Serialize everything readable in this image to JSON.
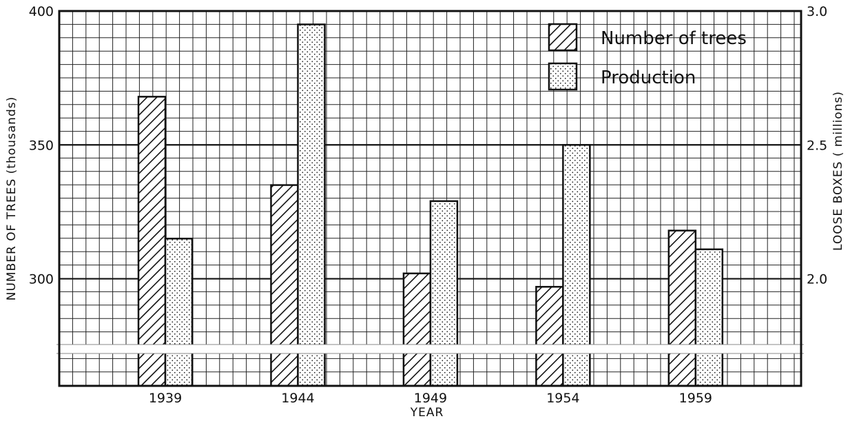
{
  "chart_data": {
    "type": "bar",
    "categories": [
      "1939",
      "1944",
      "1949",
      "1954",
      "1959"
    ],
    "series": [
      {
        "name": "Number of trees",
        "axis": "left",
        "pattern": "hatch",
        "values": [
          368,
          335,
          302,
          297,
          318
        ]
      },
      {
        "name": "Production",
        "axis": "right",
        "pattern": "dots",
        "values": [
          2.15,
          2.95,
          2.29,
          2.5,
          2.11
        ]
      }
    ],
    "xlabel": "YEAR",
    "ylabel_left": "NUMBER OF TREES (thousands)",
    "ylabel_right": "LOOSE BOXES ( millions)",
    "ylim_left": [
      260,
      400
    ],
    "ylim_right": [
      1.6,
      3.0
    ],
    "yticks_left": [
      "300",
      "350",
      "400"
    ],
    "yticks_right": [
      "2.0",
      "2.5",
      "3.0"
    ],
    "ytick_values_left": [
      300,
      350,
      400
    ],
    "ytick_values_right": [
      2.0,
      2.5,
      3.0
    ],
    "axis_break": true,
    "grid": true,
    "legend_position": "top-right"
  }
}
